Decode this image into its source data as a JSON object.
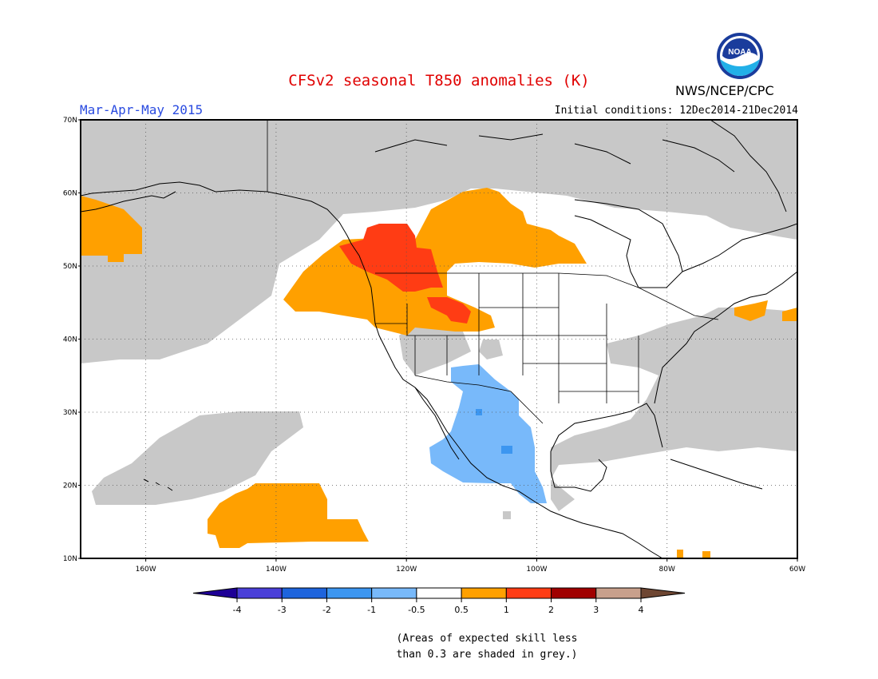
{
  "title": "CFSv2 seasonal T850 anomalies (K)",
  "period": "Mar-Apr-May 2015",
  "initial_conditions": "Initial conditions: 12Dec2014-21Dec2014",
  "agency": "NWS/NCEP/CPC",
  "logo_text": "NOAA",
  "note_line1": "(Areas of expected skill less",
  "note_line2": "than 0.3 are shaded in grey.)",
  "map": {
    "lon_range": [
      -170,
      -60
    ],
    "lat_range": [
      10,
      70
    ],
    "lon_ticks": [
      {
        "value": -160,
        "label": "160W"
      },
      {
        "value": -140,
        "label": "140W"
      },
      {
        "value": -120,
        "label": "120W"
      },
      {
        "value": -100,
        "label": "100W"
      },
      {
        "value": -80,
        "label": "80W"
      },
      {
        "value": -60,
        "label": "60W"
      }
    ],
    "lat_ticks": [
      {
        "value": 10,
        "label": "10N"
      },
      {
        "value": 20,
        "label": "20N"
      },
      {
        "value": 30,
        "label": "30N"
      },
      {
        "value": 40,
        "label": "40N"
      },
      {
        "value": 50,
        "label": "50N"
      },
      {
        "value": 60,
        "label": "60N"
      },
      {
        "value": 70,
        "label": "70N"
      }
    ]
  },
  "colorbar": {
    "labels": [
      "-4",
      "-3",
      "-2",
      "-1",
      "-0.5",
      "0.5",
      "1",
      "2",
      "3",
      "4"
    ],
    "colors": [
      "#1e0096",
      "#4a3fd8",
      "#1e64dc",
      "#3c96f0",
      "#78b9fa",
      "#ffffff",
      "#ffa000",
      "#ff3c14",
      "#a00000",
      "#c8a08c",
      "#6e4632"
    ]
  },
  "colors": {
    "skill_grey": "#c8c8c8",
    "warm_orange": "#ffa000",
    "warm_red": "#ff3c14",
    "cool_blue": "#78b9fa",
    "cool_blue_dark": "#3c96f0",
    "title_red": "#e00000",
    "period_blue": "#2a4be0"
  }
}
